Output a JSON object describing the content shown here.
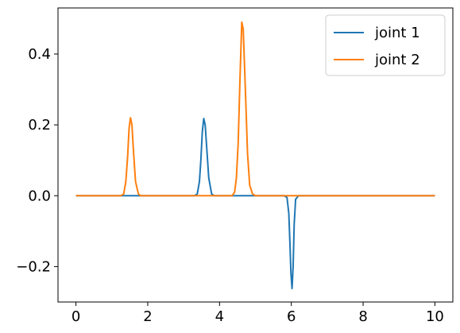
{
  "chart_data": {
    "type": "line",
    "title": "",
    "xlabel": "",
    "ylabel": "",
    "xlim": [
      -0.5,
      10.5
    ],
    "ylim": [
      -0.3,
      0.53
    ],
    "xticks": [
      0,
      2,
      4,
      6,
      8,
      10
    ],
    "xtick_labels": [
      "0",
      "2",
      "4",
      "6",
      "8",
      "10"
    ],
    "yticks": [
      -0.2,
      0.0,
      0.2,
      0.4
    ],
    "ytick_labels": [
      "−0.2",
      "0.0",
      "0.2",
      "0.4"
    ],
    "grid": false,
    "legend_position": "top-right",
    "series": [
      {
        "name": "joint 1",
        "color": "#1f77b4",
        "x": [
          0,
          3.3,
          3.38,
          3.44,
          3.48,
          3.52,
          3.56,
          3.6,
          3.64,
          3.7,
          3.78,
          3.85,
          5.8,
          5.88,
          5.93,
          5.96,
          5.99,
          6.02,
          6.05,
          6.08,
          6.12,
          6.2,
          10
        ],
        "y": [
          0,
          0,
          0.005,
          0.04,
          0.1,
          0.18,
          0.218,
          0.2,
          0.14,
          0.05,
          0.005,
          0,
          0,
          -0.005,
          -0.05,
          -0.13,
          -0.22,
          -0.262,
          -0.2,
          -0.08,
          -0.01,
          0,
          0
        ]
      },
      {
        "name": "joint 2",
        "color": "#ff7f0e",
        "x": [
          0,
          1.25,
          1.33,
          1.39,
          1.44,
          1.48,
          1.52,
          1.56,
          1.6,
          1.66,
          1.74,
          1.8,
          4.35,
          4.42,
          4.47,
          4.52,
          4.57,
          4.62,
          4.66,
          4.72,
          4.78,
          4.84,
          4.92,
          5.0,
          10
        ],
        "y": [
          0,
          0,
          0.005,
          0.04,
          0.11,
          0.19,
          0.22,
          0.2,
          0.13,
          0.04,
          0.005,
          0,
          0,
          0.01,
          0.05,
          0.15,
          0.33,
          0.49,
          0.47,
          0.3,
          0.12,
          0.03,
          0.005,
          0,
          0
        ]
      }
    ]
  }
}
